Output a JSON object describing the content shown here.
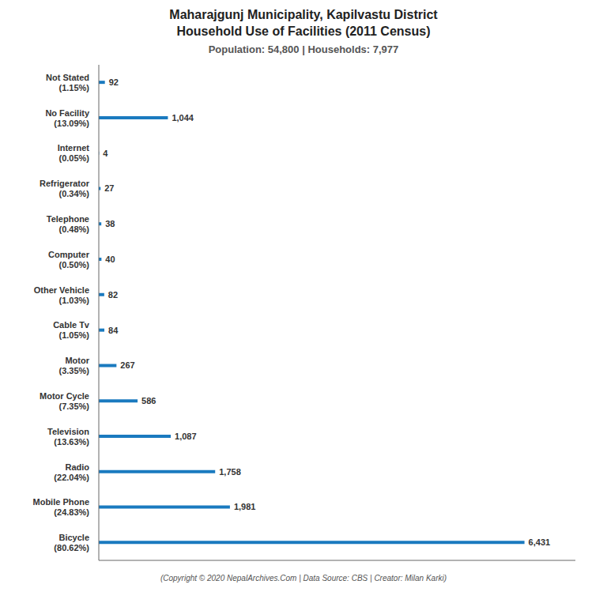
{
  "chart_data": {
    "type": "bar",
    "orientation": "horizontal",
    "title": "Maharajgunj Municipality, Kapilvastu District\nHousehold Use of Facilities (2011 Census)",
    "subtitle": "Population: 54,800 | Households: 7,977",
    "annotations": [
      "(Copyright © 2020 NepalArchives.Com | Data Source: CBS | Creator: Milan Karki)"
    ],
    "categories": [
      "Not Stated\n(1.15%)",
      "No Facility\n(13.09%)",
      "Internet\n(0.05%)",
      "Refrigerator\n(0.34%)",
      "Telephone\n(0.48%)",
      "Computer\n(0.50%)",
      "Other Vehicle\n(1.03%)",
      "Cable Tv\n(1.05%)",
      "Motor\n(3.35%)",
      "Motor Cycle\n(7.35%)",
      "Television\n(13.63%)",
      "Radio\n(22.04%)",
      "Mobile Phone\n(24.83%)",
      "Bicycle\n(80.62%)"
    ],
    "values": [
      92,
      1044,
      4,
      27,
      38,
      40,
      82,
      84,
      267,
      586,
      1087,
      1758,
      1981,
      6431
    ],
    "value_labels": [
      "92",
      "1,044",
      "4",
      "27",
      "38",
      "40",
      "82",
      "84",
      "267",
      "586",
      "1,087",
      "1,758",
      "1,981",
      "6,431"
    ],
    "color": "#1a7abf",
    "xlim": [
      0,
      7200
    ],
    "grid": false,
    "data_labels": true,
    "tick_labels": "y"
  }
}
